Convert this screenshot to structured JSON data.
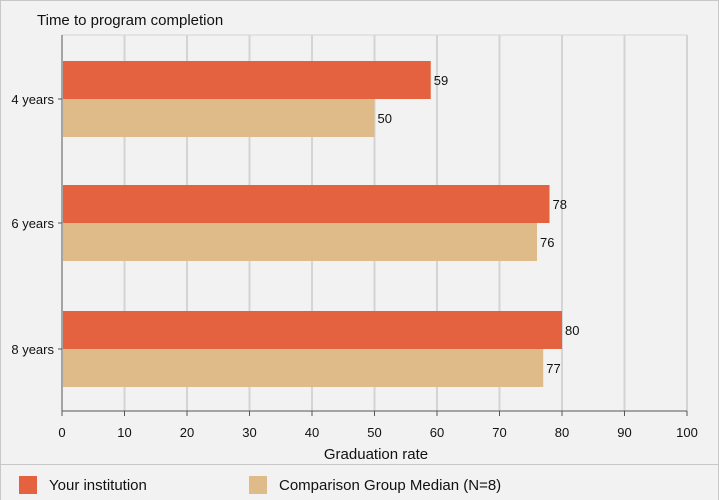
{
  "colors": {
    "institution": "#e4623f",
    "comparison": "#dfbb89",
    "grid": "#d4d4d4",
    "axis": "#555555"
  },
  "chart_data": {
    "type": "bar",
    "orientation": "horizontal",
    "title": "Time to program completion",
    "xlabel": "Graduation rate",
    "ylabel": "",
    "categories": [
      "4 years",
      "6 years",
      "8 years"
    ],
    "series": [
      {
        "name": "Your institution",
        "values": [
          59,
          78,
          80
        ]
      },
      {
        "name": "Comparison Group Median (N=8)",
        "values": [
          50,
          76,
          77
        ]
      }
    ],
    "xlim": [
      0,
      100
    ],
    "xticks": [
      0,
      10,
      20,
      30,
      40,
      50,
      60,
      70,
      80,
      90,
      100
    ],
    "grid": true,
    "legend_placement": "bottom"
  }
}
